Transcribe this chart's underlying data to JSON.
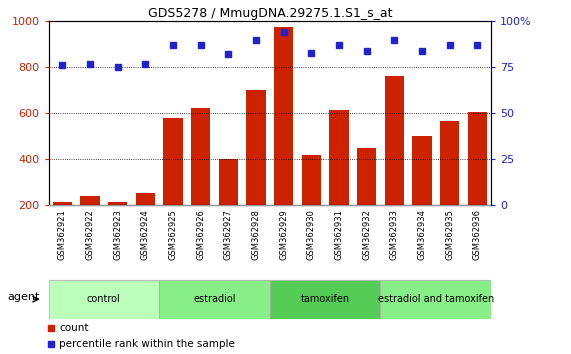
{
  "title": "GDS5278 / MmugDNA.29275.1.S1_s_at",
  "categories": [
    "GSM362921",
    "GSM362922",
    "GSM362923",
    "GSM362924",
    "GSM362925",
    "GSM362926",
    "GSM362927",
    "GSM362928",
    "GSM362929",
    "GSM362930",
    "GSM362931",
    "GSM362932",
    "GSM362933",
    "GSM362934",
    "GSM362935",
    "GSM362936"
  ],
  "counts": [
    215,
    240,
    215,
    255,
    580,
    625,
    400,
    700,
    975,
    420,
    615,
    450,
    760,
    500,
    565,
    605
  ],
  "percentiles": [
    76,
    77,
    75,
    77,
    87,
    87,
    82,
    90,
    94,
    83,
    87,
    84,
    90,
    84,
    87,
    87
  ],
  "groups": [
    {
      "label": "control",
      "start": 0,
      "end": 4,
      "color": "#bbffbb"
    },
    {
      "label": "estradiol",
      "start": 4,
      "end": 8,
      "color": "#88ee88"
    },
    {
      "label": "tamoxifen",
      "start": 8,
      "end": 12,
      "color": "#55cc55"
    },
    {
      "label": "estradiol and tamoxifen",
      "start": 12,
      "end": 16,
      "color": "#88ee88"
    }
  ],
  "bar_color": "#cc2200",
  "dot_color": "#2222cc",
  "ylim_left": [
    200,
    1000
  ],
  "ylim_right": [
    0,
    100
  ],
  "yticks_left": [
    200,
    400,
    600,
    800,
    1000
  ],
  "yticks_right": [
    0,
    25,
    50,
    75,
    100
  ],
  "grid_values": [
    400,
    600,
    800
  ],
  "agent_label": "agent",
  "legend_count": "count",
  "legend_percentile": "percentile rank within the sample",
  "background_color": "#ffffff",
  "bar_bottom": 200,
  "xlabel_gray": "#cccccc",
  "label_cell_color": "#cccccc"
}
